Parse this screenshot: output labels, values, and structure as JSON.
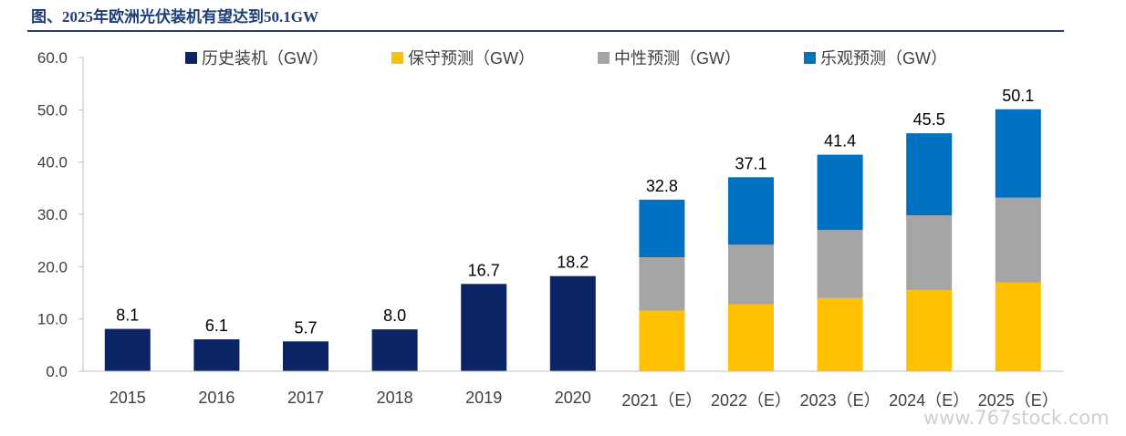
{
  "title": "图、2025年欧洲光伏装机有望达到50.1GW",
  "watermark": "www.767stock.com",
  "colors": {
    "historical": "#0b2466",
    "conservative": "#ffc000",
    "neutral": "#a5a5a5",
    "optimistic": "#0070c0",
    "axis": "#bfbfbf",
    "title": "#1f3d7a"
  },
  "chart_data": {
    "type": "bar",
    "stacked": true,
    "title": "",
    "xlabel": "",
    "ylabel": "",
    "ylim": [
      0,
      60
    ],
    "yticks": [
      "0.0",
      "10.0",
      "20.0",
      "30.0",
      "40.0",
      "50.0",
      "60.0"
    ],
    "grid": false,
    "legend_position": "top",
    "categories": [
      "2015",
      "2016",
      "2017",
      "2018",
      "2019",
      "2020",
      "2021（E）",
      "2022（E）",
      "2023（E）",
      "2024（E）",
      "2025（E）"
    ],
    "series": [
      {
        "name": "历史装机（GW）",
        "values": [
          8.1,
          6.1,
          5.7,
          8.0,
          16.7,
          18.2,
          null,
          null,
          null,
          null,
          null
        ]
      },
      {
        "name": "保守预测（GW）",
        "values": [
          null,
          null,
          null,
          null,
          null,
          null,
          11.6,
          12.8,
          14.0,
          15.5,
          17.0
        ]
      },
      {
        "name": "中性预测（GW）",
        "values": [
          null,
          null,
          null,
          null,
          null,
          null,
          10.2,
          11.4,
          13.0,
          14.3,
          16.2
        ]
      },
      {
        "name": "乐观预测（GW）",
        "values": [
          null,
          null,
          null,
          null,
          null,
          null,
          11.0,
          12.9,
          14.4,
          15.7,
          16.9
        ]
      }
    ],
    "data_labels": [
      "8.1",
      "6.1",
      "5.7",
      "8.0",
      "16.7",
      "18.2",
      "32.8",
      "37.1",
      "41.4",
      "45.5",
      "50.1"
    ]
  }
}
